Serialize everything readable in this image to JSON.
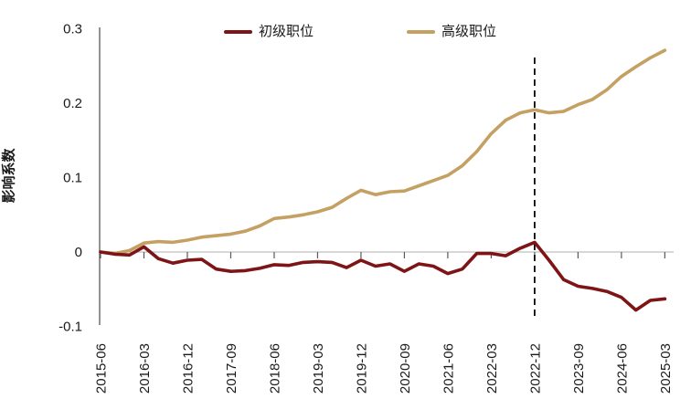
{
  "chart_data": {
    "type": "line",
    "title": "",
    "ylabel": "影响系数",
    "xlabel": "",
    "ylim": [
      -0.1,
      0.3
    ],
    "grid": "zero-baseline-only",
    "legend_position": "top",
    "y_tick_labels": [
      "0.3",
      "0.2",
      "0.1",
      "0",
      "-0.1"
    ],
    "x": [
      "2015-06",
      "2015-09",
      "2015-12",
      "2016-03",
      "2016-06",
      "2016-09",
      "2016-12",
      "2017-03",
      "2017-06",
      "2017-09",
      "2017-12",
      "2018-03",
      "2018-06",
      "2018-09",
      "2018-12",
      "2019-03",
      "2019-06",
      "2019-09",
      "2019-12",
      "2020-03",
      "2020-06",
      "2020-09",
      "2020-12",
      "2021-03",
      "2021-06",
      "2021-09",
      "2021-12",
      "2022-03",
      "2022-06",
      "2022-09",
      "2022-12",
      "2023-03",
      "2023-06",
      "2023-09",
      "2023-12",
      "2024-03",
      "2024-06",
      "2024-09",
      "2024-12",
      "2025-03"
    ],
    "x_tick_labels": [
      "2015-06",
      "2016-03",
      "2016-12",
      "2017-09",
      "2018-06",
      "2019-03",
      "2019-12",
      "2020-09",
      "2021-06",
      "2022-03",
      "2022-12",
      "2023-09",
      "2024-06",
      "2025-03"
    ],
    "series": [
      {
        "name": "初级职位",
        "color": "#7e1416",
        "values": [
          0.0,
          -0.003,
          -0.004,
          0.007,
          -0.009,
          -0.015,
          -0.011,
          -0.01,
          -0.023,
          -0.026,
          -0.025,
          -0.022,
          -0.017,
          -0.018,
          -0.014,
          -0.013,
          -0.014,
          -0.021,
          -0.011,
          -0.019,
          -0.016,
          -0.026,
          -0.016,
          -0.019,
          -0.029,
          -0.023,
          -0.002,
          -0.002,
          -0.005,
          0.005,
          0.013,
          -0.011,
          -0.037,
          -0.046,
          -0.049,
          -0.053,
          -0.061,
          -0.078,
          -0.065,
          -0.063
        ]
      },
      {
        "name": "高级职位",
        "color": "#c5a063",
        "values": [
          0.0,
          -0.002,
          0.002,
          0.012,
          0.014,
          0.013,
          0.016,
          0.02,
          0.022,
          0.024,
          0.028,
          0.035,
          0.045,
          0.047,
          0.05,
          0.054,
          0.06,
          0.072,
          0.083,
          0.077,
          0.081,
          0.082,
          0.089,
          0.096,
          0.103,
          0.116,
          0.135,
          0.159,
          0.177,
          0.187,
          0.191,
          0.187,
          0.189,
          0.198,
          0.205,
          0.218,
          0.236,
          0.249,
          0.261,
          0.271
        ]
      }
    ],
    "annotations": {
      "dashed_vline_at": "2022-12"
    },
    "colors": {
      "axis": "#595959",
      "zero_line": "#bfbfbf",
      "tick": "#595959",
      "dashed_line": "#000000",
      "text": "#1a1a1a"
    }
  }
}
